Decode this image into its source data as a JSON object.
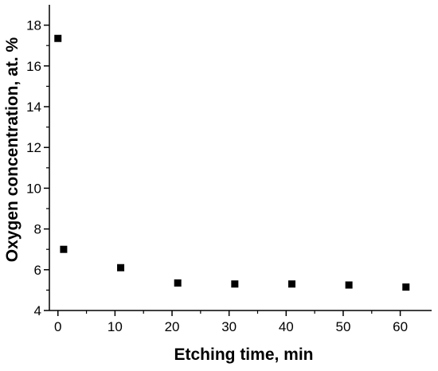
{
  "chart_data": {
    "type": "scatter",
    "title": "",
    "xlabel": "Etching time, min",
    "ylabel": "Oxygen concentration, at. %",
    "xlim": [
      -1.5,
      65.5
    ],
    "ylim": [
      4,
      19
    ],
    "xticks": [
      0,
      10,
      20,
      30,
      40,
      50,
      60
    ],
    "yticks": [
      4,
      6,
      8,
      10,
      12,
      14,
      16,
      18
    ],
    "grid": false,
    "legend": "none",
    "marker": "square",
    "marker_color": "#000000",
    "series": [
      {
        "x": [
          0,
          1,
          11,
          21,
          31,
          41,
          51,
          61
        ],
        "y": [
          17.35,
          7.0,
          6.1,
          5.35,
          5.3,
          5.3,
          5.25,
          5.15
        ]
      }
    ]
  }
}
